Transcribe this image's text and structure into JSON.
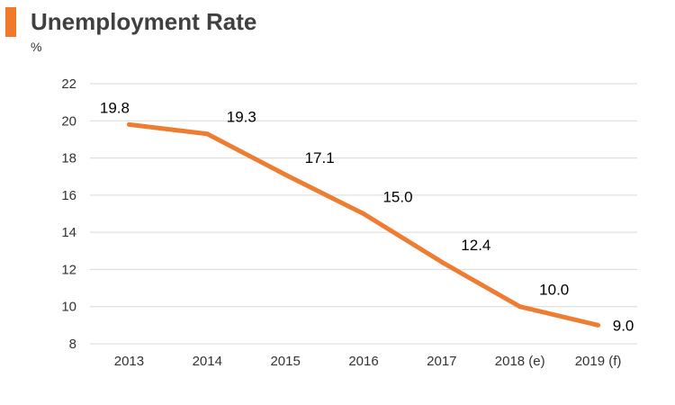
{
  "header": {
    "title": "Unemployment Rate",
    "unit": "%"
  },
  "colors": {
    "accent": "#f07a2a",
    "line": "#ee7d31",
    "grid": "#d9d9d9",
    "text": "#000000",
    "axis_text": "#333333"
  },
  "chart_data": {
    "type": "line",
    "title": "Unemployment Rate",
    "ylabel": "%",
    "xlabel": "",
    "categories": [
      "2013",
      "2014",
      "2015",
      "2016",
      "2017",
      "2018 (e)",
      "2019 (f)"
    ],
    "values": [
      19.8,
      19.3,
      17.1,
      15.0,
      12.4,
      10.0,
      9.0
    ],
    "data_labels": [
      "19.8",
      "19.3",
      "17.1",
      "15.0",
      "12.4",
      "10.0",
      "9.0"
    ],
    "ylim": [
      8,
      22
    ],
    "yticks": [
      "8",
      "10",
      "12",
      "14",
      "16",
      "18",
      "20",
      "22"
    ],
    "grid": true,
    "legend": "none"
  }
}
